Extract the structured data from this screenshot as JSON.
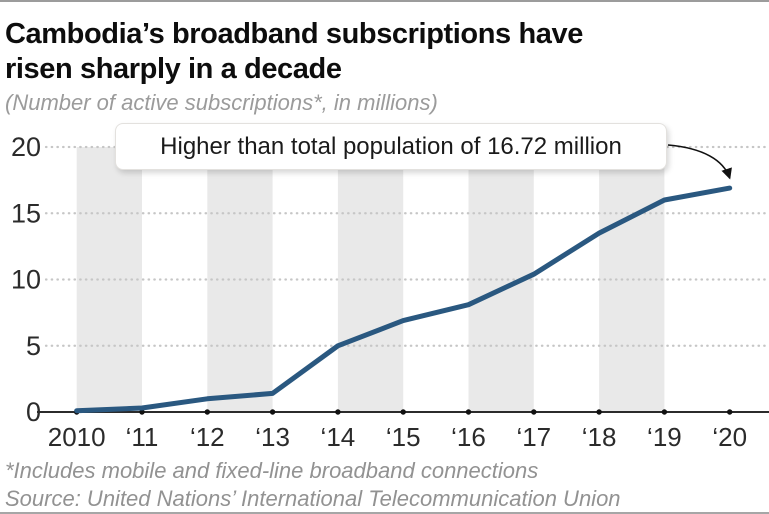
{
  "header": {
    "title_line1": "Cambodia’s broadband subscriptions have",
    "title_line2": "risen sharply in a decade",
    "subtitle": "(Number of active subscriptions*, in millions)"
  },
  "annotation": {
    "text": "Higher than total population of 16.72 million"
  },
  "footer": {
    "footnote": "*Includes mobile and fixed-line broadband connections",
    "source": "Source: United Nations’ International Telecommunication Union"
  },
  "colors": {
    "line": "#2a5880",
    "band": "#e9e9e9",
    "grid_dot": "#c6c6c6",
    "axis": "#2b2b2b",
    "tick_dot": "#111111",
    "axis_label": "#2b2b2b",
    "arrow": "#111111"
  },
  "chart_data": {
    "type": "line",
    "title": "Cambodia’s broadband subscriptions have risen sharply in a decade",
    "subtitle": "(Number of active subscriptions*, in millions)",
    "years": [
      2010,
      2011,
      2012,
      2013,
      2014,
      2015,
      2016,
      2017,
      2018,
      2019,
      2020
    ],
    "x_tick_labels": [
      "2010",
      "‘11",
      "‘12",
      "‘13",
      "‘14",
      "‘15",
      "‘16",
      "‘17",
      "‘18",
      "‘19",
      "‘20"
    ],
    "values": [
      0.1,
      0.3,
      1.0,
      1.4,
      5.0,
      6.9,
      8.1,
      10.4,
      13.5,
      16.0,
      16.9
    ],
    "ylim": [
      0,
      20
    ],
    "yticks": [
      0,
      5,
      10,
      15,
      20
    ],
    "grid": "dotted horizontal gridlines",
    "shaded_year_bands": [
      [
        2010,
        2011
      ],
      [
        2012,
        2013
      ],
      [
        2014,
        2015
      ],
      [
        2016,
        2017
      ],
      [
        2018,
        2019
      ]
    ],
    "annotation": "Higher than total population of 16.72 million",
    "annotation_points_to": {
      "year": 2020,
      "value": 16.9
    }
  }
}
